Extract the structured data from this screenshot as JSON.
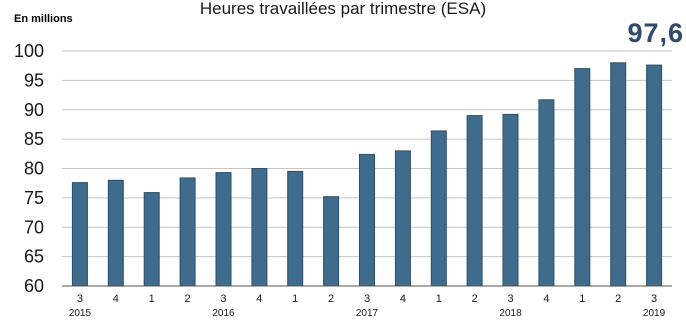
{
  "chart_data": {
    "type": "bar",
    "title": "Heures travaillées par trimestre (ESA)",
    "unit_label": "En millions",
    "highlight_value": "97,6",
    "categories": [
      "3",
      "4",
      "1",
      "2",
      "3",
      "4",
      "1",
      "2",
      "3",
      "4",
      "1",
      "2",
      "3",
      "4",
      "1",
      "2",
      "3"
    ],
    "years": [
      {
        "label": "2015",
        "index": 0
      },
      {
        "label": "2016",
        "index": 4
      },
      {
        "label": "2017",
        "index": 8
      },
      {
        "label": "2018",
        "index": 12
      },
      {
        "label": "2019",
        "index": 16
      }
    ],
    "values": [
      77.6,
      78.0,
      75.9,
      78.4,
      79.3,
      80.0,
      79.5,
      75.2,
      82.4,
      83.0,
      86.4,
      89.0,
      89.2,
      91.7,
      97.0,
      98.0,
      97.6
    ],
    "ylim": [
      60,
      100
    ],
    "yticks": [
      60,
      65,
      70,
      75,
      80,
      85,
      90,
      95,
      100
    ],
    "grid": true,
    "bar_color": "#3f6b8c",
    "bar_edge_color": "#2c4f6a"
  }
}
